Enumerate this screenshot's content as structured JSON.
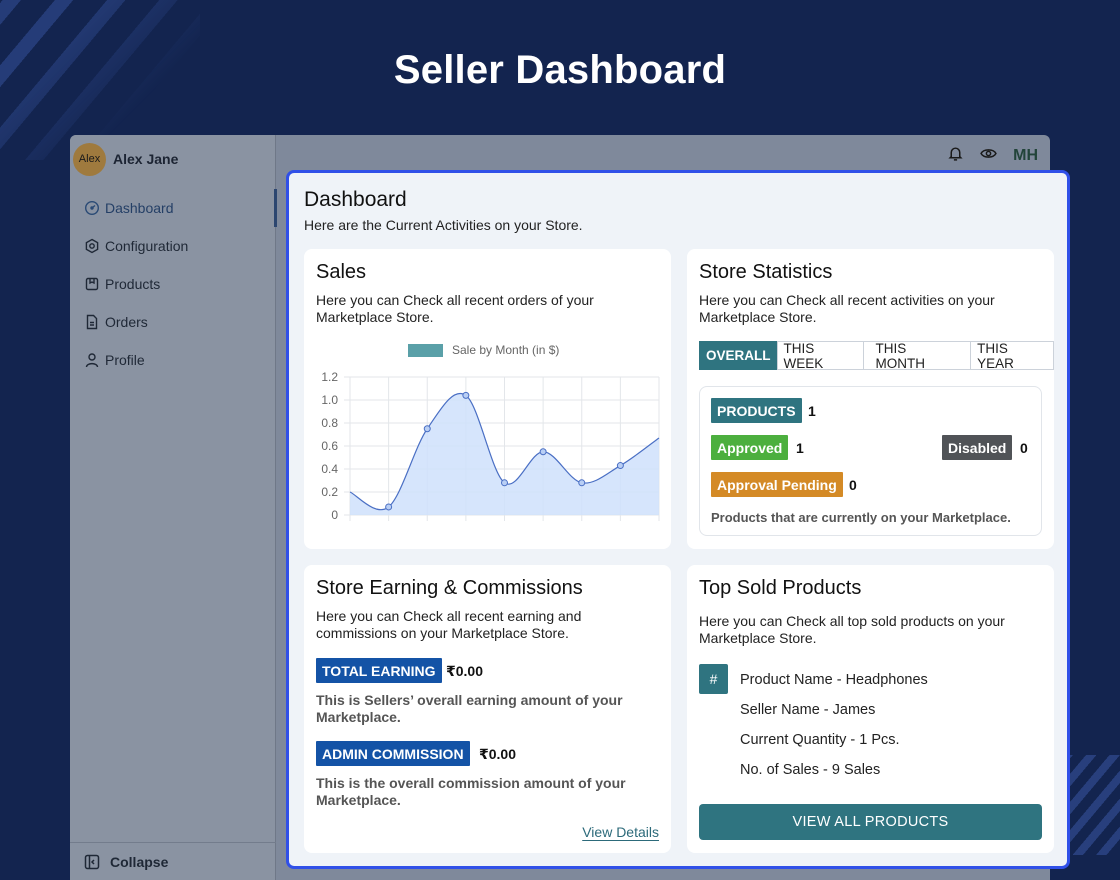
{
  "page": {
    "title": "Seller Dashboard"
  },
  "user": {
    "avatar_text": "Alex",
    "name": "Alex Jane"
  },
  "sidebar": {
    "items": [
      {
        "label": "Dashboard",
        "icon": "gauge-icon"
      },
      {
        "label": "Configuration",
        "icon": "hexagon-gear-icon"
      },
      {
        "label": "Products",
        "icon": "box-icon"
      },
      {
        "label": "Orders",
        "icon": "document-icon"
      },
      {
        "label": "Profile",
        "icon": "user-icon"
      }
    ],
    "collapse_label": "Collapse"
  },
  "topbar": {
    "initials": "MH",
    "icons": [
      "bell-icon",
      "eye-icon"
    ]
  },
  "dashboard": {
    "heading": "Dashboard",
    "subheading": "Here are the Current Activities on your Store."
  },
  "sales": {
    "title": "Sales",
    "description": "Here you can Check all recent orders of your Marketplace Store."
  },
  "chart_data": {
    "type": "line",
    "title": "",
    "legend": "Sale by Month (in $)",
    "legend_position": "top",
    "xlabel": "",
    "ylabel": "",
    "ylim": [
      0,
      1.2
    ],
    "yticks": [
      "0",
      "0.2",
      "0.4",
      "0.6",
      "0.8",
      "1.0",
      "1.2"
    ],
    "grid": true,
    "fill": true,
    "series": [
      {
        "name": "Sale by Month (in $)",
        "values": [
          0.2,
          0.07,
          0.75,
          1.04,
          0.28,
          0.55,
          0.28,
          0.43,
          0.67
        ]
      }
    ],
    "colors": {
      "line": "#4a6fc4",
      "fill": "#cfe0fb",
      "legend": "#5aa0a8"
    }
  },
  "store_stats": {
    "title": "Store Statistics",
    "description": "Here you can Check all recent activities on your Marketplace Store.",
    "tabs": [
      "OVERALL",
      "THIS WEEK",
      "THIS MONTH",
      "THIS YEAR"
    ],
    "active_tab": "OVERALL",
    "products_label": "PRODUCTS",
    "products_count": "1",
    "approved_label": "Approved",
    "approved_count": "1",
    "disabled_label": "Disabled",
    "disabled_count": "0",
    "pending_label": "Approval Pending",
    "pending_count": "0",
    "note": "Products that are currently on your Marketplace.",
    "colors": {
      "products": "#2f7480",
      "approved": "#4caf3e",
      "disabled": "#505357",
      "pending": "#d48a26"
    }
  },
  "earnings": {
    "title": "Store Earning & Commissions",
    "description": "Here you can Check all recent earning and commissions on your Marketplace Store.",
    "total_label": "TOTAL EARNING",
    "total_value": "₹0.00",
    "total_note": "This is Sellers’ overall earning amount of your Marketplace.",
    "admin_label": "ADMIN COMMISSION",
    "admin_value": "₹0.00",
    "admin_note": "This is the overall commission amount of your Marketplace.",
    "link": "View Details"
  },
  "top_sold": {
    "title": "Top Sold Products",
    "description": "Here you can Check all top sold products on your Marketplace Store.",
    "rank": "#",
    "product_name": "Product Name - Headphones",
    "seller_name": "Seller Name - James",
    "quantity": "Current Quantity - 1 Pcs.",
    "sales": "No. of Sales - 9 Sales",
    "button": "VIEW ALL PRODUCTS"
  }
}
